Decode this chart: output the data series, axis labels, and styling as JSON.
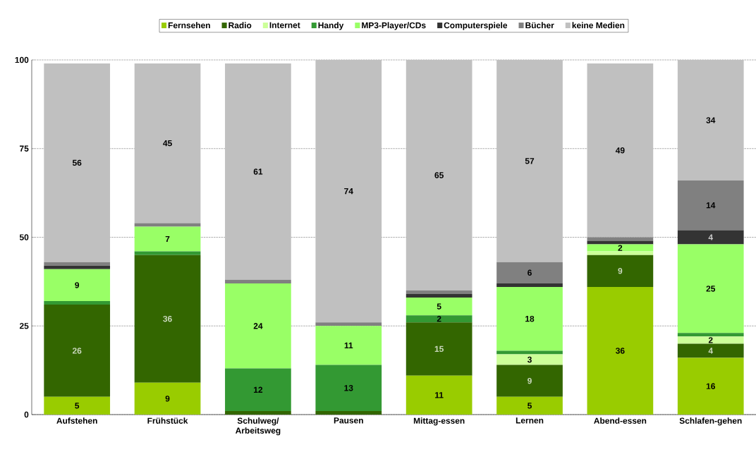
{
  "chart_data": {
    "type": "bar",
    "stacked": true,
    "categories": [
      "Aufstehen",
      "Frühstück",
      "Schulweg/ Arbeitsweg",
      "Pausen",
      "Mittag-essen",
      "Lernen",
      "Abend-essen",
      "Schlafen-gehen"
    ],
    "series": [
      {
        "name": "Fernsehen",
        "color": "#99cc00",
        "values": [
          5,
          9,
          0,
          0,
          11,
          5,
          36,
          16
        ],
        "value_labels": [
          "5",
          "9",
          null,
          null,
          "11",
          "5",
          "36",
          "16"
        ]
      },
      {
        "name": "Radio",
        "color": "#336600",
        "values": [
          26,
          36,
          1,
          1,
          15,
          9,
          9,
          4
        ],
        "value_labels": [
          "26",
          "36",
          null,
          null,
          "15",
          "9",
          "9",
          "4"
        ]
      },
      {
        "name": "Internet",
        "color": "#ccff99",
        "values": [
          0,
          0,
          0,
          0,
          0,
          3,
          1,
          2
        ],
        "value_labels": [
          null,
          null,
          null,
          null,
          null,
          "3",
          null,
          "2"
        ]
      },
      {
        "name": "Handy",
        "color": "#339933",
        "values": [
          1,
          1,
          12,
          13,
          2,
          1,
          0,
          1
        ],
        "value_labels": [
          null,
          null,
          "12",
          "13",
          "2",
          null,
          null,
          null
        ]
      },
      {
        "name": "MP3-Player/CDs",
        "color": "#99ff66",
        "values": [
          9,
          7,
          24,
          11,
          5,
          18,
          2,
          25
        ],
        "value_labels": [
          "9",
          "7",
          "24",
          "11",
          "5",
          "18",
          "2",
          "25"
        ]
      },
      {
        "name": "Computerspiele",
        "color": "#333333",
        "values": [
          1,
          0,
          0,
          0,
          1,
          1,
          1,
          4
        ],
        "value_labels": [
          null,
          null,
          null,
          null,
          null,
          null,
          null,
          "4"
        ]
      },
      {
        "name": "Bücher",
        "color": "#808080",
        "values": [
          1,
          1,
          1,
          1,
          1,
          6,
          1,
          14
        ],
        "value_labels": [
          null,
          null,
          null,
          null,
          null,
          "6",
          null,
          "14"
        ]
      },
      {
        "name": "keine Medien",
        "color": "#c0c0c0",
        "values": [
          56,
          45,
          61,
          74,
          65,
          57,
          49,
          34
        ],
        "value_labels": [
          "56",
          "45",
          "61",
          "74",
          "65",
          "57",
          "49",
          "34"
        ]
      }
    ],
    "ylim": [
      0,
      100
    ],
    "yticks": [
      0,
      25,
      50,
      75,
      100
    ],
    "grid": "y",
    "legend": "top"
  }
}
